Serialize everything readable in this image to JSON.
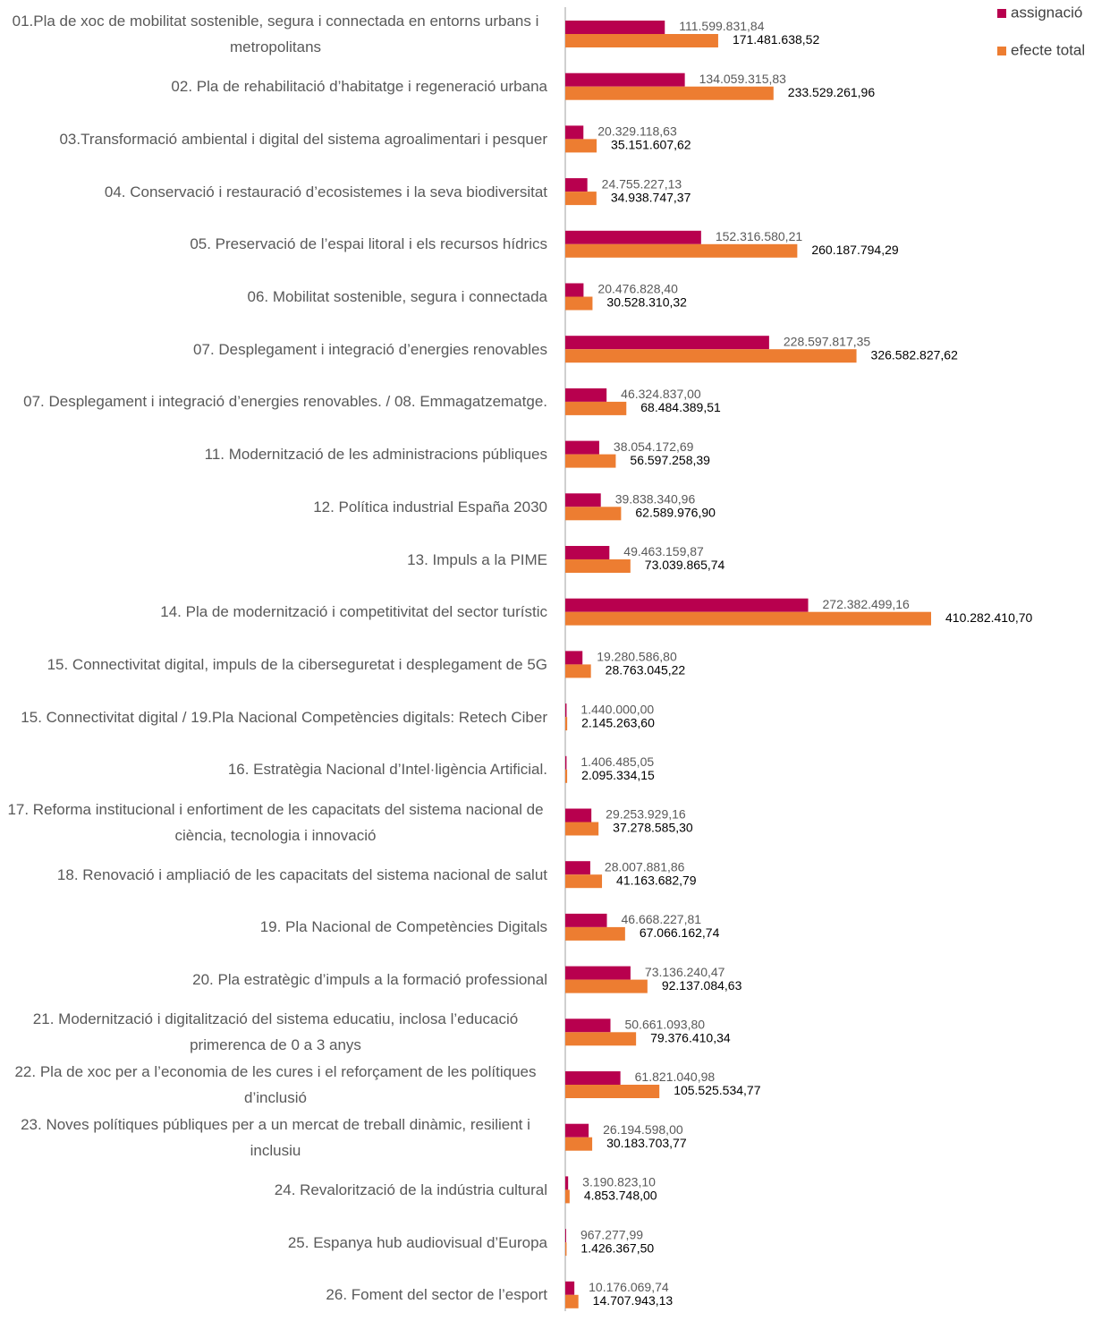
{
  "chart_data": {
    "type": "barh",
    "categories": [
      "01.Pla de xoc de mobilitat sostenible, segura i connectada en entorns urbans i metropolitans",
      "02. Pla de rehabilitació d’habitatge i regeneració urbana",
      "03.Transformació ambiental i digital del sistema agroalimentari i pesquer",
      "04. Conservació i restauració d’ecosistemes i la seva biodiversitat",
      "05. Preservació de l’espai litoral i els recursos hídrics",
      "06. Mobilitat sostenible, segura i connectada",
      "07. Desplegament i integració d’energies renovables",
      "07. Desplegament i integració d’energies renovables. / 08. Emmagatzematge.",
      "11. Modernització de les administracions públiques",
      "12. Política industrial España 2030",
      "13. Impuls a la PIME",
      "14. Pla de modernització i competitivitat del sector turístic",
      "15. Connectivitat digital, impuls de la ciberseguretat i desplegament de 5G",
      "15. Connectivitat digital / 19.Pla Nacional Competències digitals: Retech Ciber",
      "16. Estratègia Nacional d’Intel·ligència Artificial.",
      "17. Reforma institucional i enfortiment de les capacitats del sistema nacional de ciència, tecnologia i innovació",
      "18. Renovació i ampliació de les capacitats del sistema nacional de salut",
      "19. Pla Nacional de Competències Digitals",
      "20. Pla estratègic d’impuls a la formació professional",
      "21. Modernització i digitalització del sistema educatiu, inclosa l’educació primerenca de 0 a 3 anys",
      "22. Pla de xoc per a l’economia de les cures i el reforçament de les polítiques d’inclusió",
      "23. Noves polítiques públiques per a un mercat de treball dinàmic, resilient i inclusiu",
      "24. Revalorització de la indústria cultural",
      "25. Espanya hub audiovisual d’Europa",
      "26. Foment del sector de l’esport"
    ],
    "series": [
      {
        "name": "assignació",
        "color": "#b8004e",
        "values": [
          111599831.84,
          134059315.83,
          20329118.63,
          24755227.13,
          152316580.21,
          20476828.4,
          228597817.35,
          46324837.0,
          38054172.69,
          39838340.96,
          49463159.87,
          272382499.16,
          19280586.8,
          1440000.0,
          1406485.05,
          29253929.16,
          28007881.86,
          46668227.81,
          73136240.47,
          50661093.8,
          61821040.98,
          26194598.0,
          3190823.1,
          967277.99,
          10176069.74
        ],
        "value_labels": [
          "111.599.831,84",
          "134.059.315,83",
          "20.329.118,63",
          "24.755.227,13",
          "152.316.580,21",
          "20.476.828,40",
          "228.597.817,35",
          "46.324.837,00",
          "38.054.172,69",
          "39.838.340,96",
          "49.463.159,87",
          "272.382.499,16",
          "19.280.586,80",
          "1.440.000,00",
          "1.406.485,05",
          "29.253.929,16",
          "28.007.881,86",
          "46.668.227,81",
          "73.136.240,47",
          "50.661.093,80",
          "61.821.040,98",
          "26.194.598,00",
          "3.190.823,10",
          "967.277,99",
          "10.176.069,74"
        ]
      },
      {
        "name": "efecte total",
        "color": "#ed7d31",
        "values": [
          171481638.52,
          233529261.96,
          35151607.62,
          34938747.37,
          260187794.29,
          30528310.32,
          326582827.62,
          68484389.51,
          56597258.39,
          62589976.9,
          73039865.74,
          410282410.7,
          28763045.22,
          2145263.6,
          2095334.15,
          37278585.3,
          41163682.79,
          67066162.74,
          92137084.63,
          79376410.34,
          105525534.77,
          30183703.77,
          4853748.0,
          1426367.5,
          14707943.13
        ],
        "value_labels": [
          "171.481.638,52",
          "233.529.261,96",
          "35.151.607,62",
          "34.938.747,37",
          "260.187.794,29",
          "30.528.310,32",
          "326.582.827,62",
          "68.484.389,51",
          "56.597.258,39",
          "62.589.976,90",
          "73.039.865,74",
          "410.282.410,70",
          "28.763.045,22",
          "2.145.263,60",
          "2.095.334,15",
          "37.278.585,30",
          "41.163.682,79",
          "67.066.162,74",
          "92.137.084,63",
          "79.376.410,34",
          "105.525.534,77",
          "30.183.703,77",
          "4.853.748,00",
          "1.426.367,50",
          "14.707.943,13"
        ]
      }
    ],
    "legend": "top-right"
  }
}
